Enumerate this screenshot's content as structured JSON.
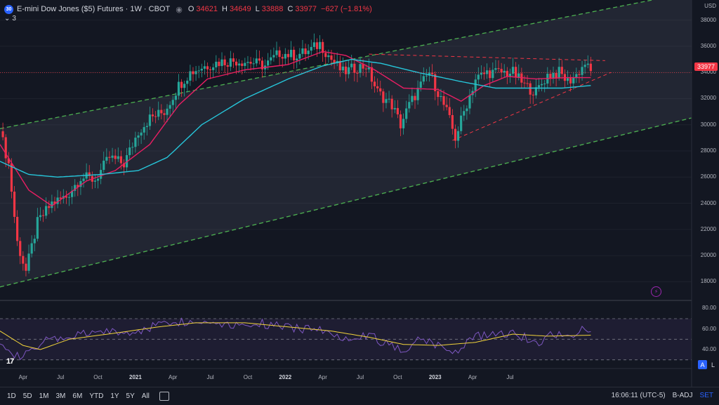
{
  "legend": {
    "badge": "30",
    "title": "E-mini Dow Jones ($5) Futures · 1W · CBOT",
    "eye_icon": "eye-icon",
    "open_k": "O",
    "open_v": "34621",
    "high_k": "H",
    "high_v": "34649",
    "low_k": "L",
    "low_v": "33888",
    "close_k": "C",
    "close_v": "33977",
    "change": "−627 (−1.81%)",
    "collapse_count": "3"
  },
  "price_axis": {
    "currency": "USD",
    "ticks": [
      "38000",
      "36000",
      "34000",
      "32000",
      "30000",
      "28000",
      "26000",
      "24000",
      "22000",
      "20000",
      "18000"
    ],
    "last_price": "33977"
  },
  "rsi_axis": {
    "ticks": [
      "80.00",
      "60.00",
      "40.00"
    ]
  },
  "time_axis": [
    {
      "label": "Apr",
      "bold": false
    },
    {
      "label": "Jul",
      "bold": false
    },
    {
      "label": "Oct",
      "bold": false
    },
    {
      "label": "2021",
      "bold": true
    },
    {
      "label": "Apr",
      "bold": false
    },
    {
      "label": "Jul",
      "bold": false
    },
    {
      "label": "Oct",
      "bold": false
    },
    {
      "label": "2022",
      "bold": true
    },
    {
      "label": "Apr",
      "bold": false
    },
    {
      "label": "Jul",
      "bold": false
    },
    {
      "label": "Oct",
      "bold": false
    },
    {
      "label": "2023",
      "bold": true
    },
    {
      "label": "Apr",
      "bold": false
    },
    {
      "label": "Jul",
      "bold": false
    }
  ],
  "bottom_bar": {
    "timeframes": [
      "1D",
      "5D",
      "1M",
      "3M",
      "6M",
      "YTD",
      "1Y",
      "5Y",
      "All"
    ],
    "clock": "16:06:11 (UTC-5)",
    "adj": "B-ADJ",
    "set": "SET"
  },
  "corner_buttons": {
    "a": "A",
    "l": "L"
  },
  "colors": {
    "up": "#26a69a",
    "down": "#f23645",
    "ma_fast": "#e91e63",
    "ma_slow": "#26c6da",
    "channel": "#4caf50",
    "rsi": "#7e57c2",
    "rsi_ma": "#f2d43a"
  },
  "chart_data": {
    "type": "candlestick",
    "symbol": "E-mini Dow Jones ($5) Futures",
    "interval": "1W",
    "exchange": "CBOT",
    "ylim": [
      17000,
      39000
    ],
    "rsi_ylim": [
      25,
      85
    ],
    "anchors": [
      {
        "t": 0,
        "p": 29500
      },
      {
        "t": 3,
        "p": 27000
      },
      {
        "t": 6,
        "p": 21000
      },
      {
        "t": 9,
        "p": 18800
      },
      {
        "t": 13,
        "p": 22500
      },
      {
        "t": 18,
        "p": 24000
      },
      {
        "t": 23,
        "p": 24500
      },
      {
        "t": 28,
        "p": 26000
      },
      {
        "t": 33,
        "p": 25800
      },
      {
        "t": 38,
        "p": 27500
      },
      {
        "t": 43,
        "p": 27000
      },
      {
        "t": 48,
        "p": 29500
      },
      {
        "t": 52,
        "p": 30500
      },
      {
        "t": 57,
        "p": 31000
      },
      {
        "t": 62,
        "p": 33000
      },
      {
        "t": 66,
        "p": 34000
      },
      {
        "t": 70,
        "p": 34400
      },
      {
        "t": 76,
        "p": 34800
      },
      {
        "t": 82,
        "p": 34900
      },
      {
        "t": 87,
        "p": 34800
      },
      {
        "t": 92,
        "p": 34500
      },
      {
        "t": 97,
        "p": 35500
      },
      {
        "t": 102,
        "p": 35300
      },
      {
        "t": 107,
        "p": 35600
      },
      {
        "t": 111,
        "p": 36200
      },
      {
        "t": 115,
        "p": 35000
      },
      {
        "t": 119,
        "p": 34000
      },
      {
        "t": 124,
        "p": 34400
      },
      {
        "t": 127,
        "p": 34500
      },
      {
        "t": 131,
        "p": 32500
      },
      {
        "t": 136,
        "p": 31500
      },
      {
        "t": 139,
        "p": 30000
      },
      {
        "t": 142,
        "p": 31500
      },
      {
        "t": 146,
        "p": 33000
      },
      {
        "t": 149,
        "p": 34000
      },
      {
        "t": 152,
        "p": 32500
      },
      {
        "t": 155,
        "p": 31000
      },
      {
        "t": 158,
        "p": 29000
      },
      {
        "t": 161,
        "p": 31000
      },
      {
        "t": 165,
        "p": 33500
      },
      {
        "t": 169,
        "p": 34000
      },
      {
        "t": 174,
        "p": 34000
      },
      {
        "t": 178,
        "p": 34000
      },
      {
        "t": 182,
        "p": 33000
      },
      {
        "t": 186,
        "p": 32500
      },
      {
        "t": 190,
        "p": 33800
      },
      {
        "t": 194,
        "p": 34000
      },
      {
        "t": 197,
        "p": 33300
      },
      {
        "t": 200,
        "p": 33800
      },
      {
        "t": 203,
        "p": 34700
      },
      {
        "t": 205,
        "p": 33977
      }
    ],
    "ma_fast_anchors": [
      {
        "t": 0,
        "p": 28500
      },
      {
        "t": 10,
        "p": 25000
      },
      {
        "t": 18,
        "p": 23800
      },
      {
        "t": 30,
        "p": 25700
      },
      {
        "t": 40,
        "p": 26500
      },
      {
        "t": 52,
        "p": 28500
      },
      {
        "t": 62,
        "p": 31500
      },
      {
        "t": 72,
        "p": 33500
      },
      {
        "t": 85,
        "p": 34200
      },
      {
        "t": 100,
        "p": 34600
      },
      {
        "t": 112,
        "p": 35600
      },
      {
        "t": 120,
        "p": 35300
      },
      {
        "t": 130,
        "p": 34200
      },
      {
        "t": 140,
        "p": 32800
      },
      {
        "t": 152,
        "p": 32700
      },
      {
        "t": 160,
        "p": 31800
      },
      {
        "t": 168,
        "p": 33000
      },
      {
        "t": 176,
        "p": 33700
      },
      {
        "t": 186,
        "p": 33500
      },
      {
        "t": 196,
        "p": 33600
      },
      {
        "t": 205,
        "p": 33600
      }
    ],
    "ma_slow_anchors": [
      {
        "t": 0,
        "p": 27200
      },
      {
        "t": 10,
        "p": 26200
      },
      {
        "t": 20,
        "p": 26000
      },
      {
        "t": 35,
        "p": 26200
      },
      {
        "t": 48,
        "p": 26500
      },
      {
        "t": 58,
        "p": 27500
      },
      {
        "t": 70,
        "p": 30000
      },
      {
        "t": 85,
        "p": 32000
      },
      {
        "t": 100,
        "p": 33500
      },
      {
        "t": 112,
        "p": 34500
      },
      {
        "t": 122,
        "p": 35000
      },
      {
        "t": 132,
        "p": 34700
      },
      {
        "t": 145,
        "p": 34000
      },
      {
        "t": 160,
        "p": 33300
      },
      {
        "t": 172,
        "p": 32800
      },
      {
        "t": 185,
        "p": 32800
      },
      {
        "t": 195,
        "p": 32800
      },
      {
        "t": 205,
        "p": 33000
      }
    ],
    "rsi_anchors": [
      {
        "t": 0,
        "p": 50
      },
      {
        "t": 6,
        "p": 33
      },
      {
        "t": 9,
        "p": 35
      },
      {
        "t": 16,
        "p": 48
      },
      {
        "t": 24,
        "p": 52
      },
      {
        "t": 30,
        "p": 55
      },
      {
        "t": 38,
        "p": 58
      },
      {
        "t": 46,
        "p": 55
      },
      {
        "t": 52,
        "p": 62
      },
      {
        "t": 60,
        "p": 68
      },
      {
        "t": 66,
        "p": 66
      },
      {
        "t": 74,
        "p": 68
      },
      {
        "t": 80,
        "p": 64
      },
      {
        "t": 90,
        "p": 66
      },
      {
        "t": 97,
        "p": 62
      },
      {
        "t": 104,
        "p": 60
      },
      {
        "t": 110,
        "p": 62
      },
      {
        "t": 116,
        "p": 52
      },
      {
        "t": 122,
        "p": 53
      },
      {
        "t": 128,
        "p": 55
      },
      {
        "t": 134,
        "p": 45
      },
      {
        "t": 140,
        "p": 40
      },
      {
        "t": 146,
        "p": 52
      },
      {
        "t": 152,
        "p": 44
      },
      {
        "t": 158,
        "p": 38
      },
      {
        "t": 164,
        "p": 52
      },
      {
        "t": 170,
        "p": 55
      },
      {
        "t": 178,
        "p": 57
      },
      {
        "t": 186,
        "p": 46
      },
      {
        "t": 192,
        "p": 56
      },
      {
        "t": 198,
        "p": 52
      },
      {
        "t": 202,
        "p": 62
      },
      {
        "t": 205,
        "p": 53
      }
    ],
    "rsi_ma_anchors": [
      {
        "t": 0,
        "p": 58
      },
      {
        "t": 8,
        "p": 44
      },
      {
        "t": 14,
        "p": 40
      },
      {
        "t": 24,
        "p": 50
      },
      {
        "t": 40,
        "p": 56
      },
      {
        "t": 55,
        "p": 62
      },
      {
        "t": 68,
        "p": 66
      },
      {
        "t": 85,
        "p": 66
      },
      {
        "t": 100,
        "p": 62
      },
      {
        "t": 115,
        "p": 58
      },
      {
        "t": 128,
        "p": 52
      },
      {
        "t": 140,
        "p": 45
      },
      {
        "t": 152,
        "p": 44
      },
      {
        "t": 165,
        "p": 47
      },
      {
        "t": 178,
        "p": 55
      },
      {
        "t": 190,
        "p": 53
      },
      {
        "t": 205,
        "p": 54
      }
    ],
    "rsi_levels": [
      70,
      50,
      30
    ],
    "channel_upper": [
      {
        "t": 0,
        "p": 29700
      },
      {
        "t": 260,
        "p": 41000
      }
    ],
    "channel_lower": [
      {
        "t": 0,
        "p": 17600
      },
      {
        "t": 260,
        "p": 31600
      }
    ],
    "resistance": [
      {
        "t": 128,
        "p": 35400
      },
      {
        "t": 210,
        "p": 34900
      }
    ],
    "wedge_support": [
      {
        "t": 157,
        "p": 28800
      },
      {
        "t": 212,
        "p": 34000
      }
    ],
    "last_price_line": 33977
  }
}
